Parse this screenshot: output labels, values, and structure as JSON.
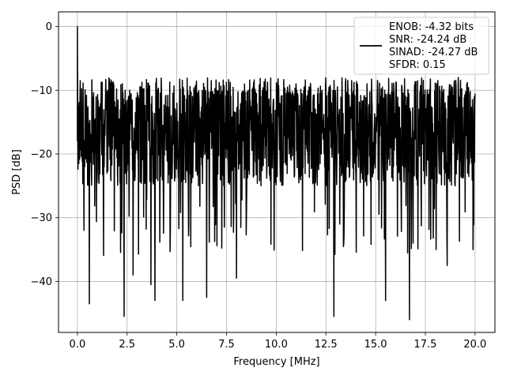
{
  "chart_data": {
    "type": "line",
    "xlabel": "Frequency [MHz]",
    "ylabel": "PSD [dB]",
    "xlim": [
      -0.95,
      21.0
    ],
    "ylim": [
      -48.0,
      2.3
    ],
    "xticks": [
      0.0,
      2.5,
      5.0,
      7.5,
      10.0,
      12.5,
      15.0,
      17.5,
      20.0
    ],
    "xtick_labels": [
      "0.0",
      "2.5",
      "5.0",
      "7.5",
      "10.0",
      "12.5",
      "15.0",
      "17.5",
      "20.0"
    ],
    "yticks": [
      0,
      -10,
      -20,
      -30,
      -40
    ],
    "ytick_labels": [
      "0",
      "−10",
      "−20",
      "−30",
      "−40"
    ],
    "grid": true,
    "legend_position": "top-right",
    "line_color": "#000000",
    "legend": [
      "ENOB: -4.32 bits",
      "SNR: -24.24 dB",
      "SINAD: -24.27 dB",
      "SFDR: 0.15"
    ],
    "series": [
      {
        "x_start": 0.0,
        "x_end": 20.0,
        "upper_envelope": -8,
        "typical_range": [
          -25,
          -10
        ],
        "peak": [
          0.0,
          0.0
        ],
        "notable_minima": [
          [
            0.6,
            -43.5
          ],
          [
            2.35,
            -45.5
          ],
          [
            2.8,
            -39.0
          ],
          [
            3.7,
            -40.5
          ],
          [
            3.9,
            -43.0
          ],
          [
            5.3,
            -43.0
          ],
          [
            6.5,
            -42.5
          ],
          [
            8.0,
            -39.5
          ],
          [
            12.9,
            -45.5
          ],
          [
            15.5,
            -43.0
          ],
          [
            16.7,
            -46.0
          ],
          [
            18.6,
            -37.5
          ],
          [
            19.9,
            -35.0
          ]
        ]
      }
    ]
  }
}
